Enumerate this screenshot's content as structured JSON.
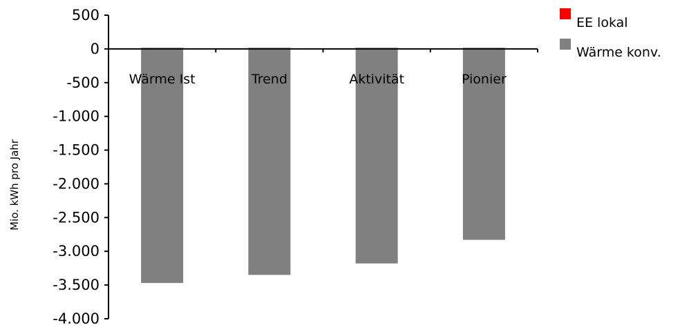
{
  "chart_data": {
    "type": "bar",
    "title": "",
    "xlabel": "",
    "ylabel": "Mio. kWh pro Jahr",
    "ylim": [
      -4000,
      500
    ],
    "y_ticks": [
      500,
      0,
      -500,
      -1000,
      -1500,
      -2000,
      -2500,
      -3000,
      -3500,
      -4000
    ],
    "y_tick_labels": [
      "500",
      "0",
      "-500",
      "-1.000",
      "-1.500",
      "-2.000",
      "-2.500",
      "-3.000",
      "-3.500",
      "-4.000"
    ],
    "categories": [
      "Wärme Ist",
      "Trend",
      "Aktivität",
      "Pionier"
    ],
    "stacked": true,
    "series": [
      {
        "name": "EE lokal",
        "color": "#ff0000",
        "values": [
          10,
          10,
          10,
          10
        ]
      },
      {
        "name": "Wärme konv.",
        "color": "#808080",
        "values": [
          -3470,
          -3350,
          -3180,
          -2830
        ]
      }
    ],
    "grid": false,
    "legend_position": "top-right"
  }
}
